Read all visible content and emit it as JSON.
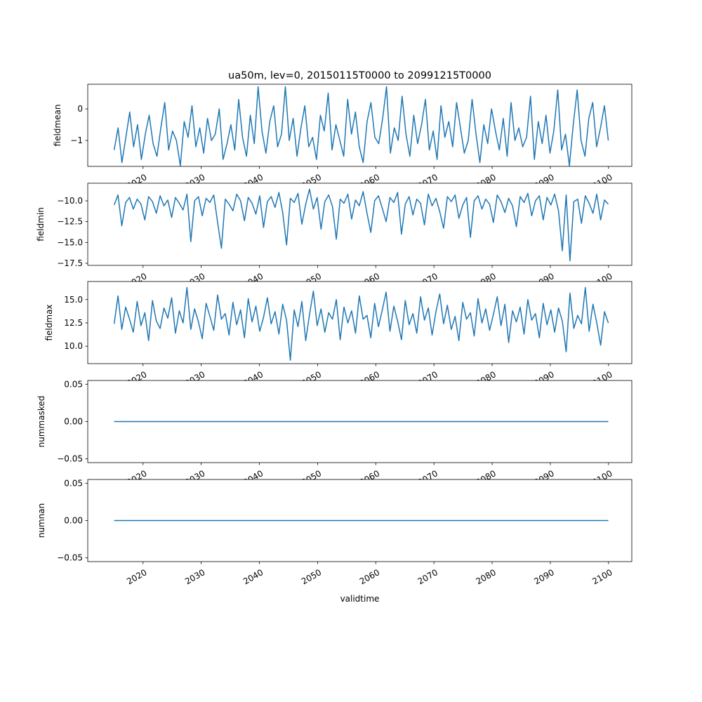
{
  "chart_data": [
    {
      "type": "line",
      "title": "ua50m, lev=0, 20150115T0000 to 20991215T0000",
      "ylabel": "fieldmean",
      "xlabel": "",
      "ylim": [
        -1.82,
        0.78
      ],
      "yticks": [
        0,
        -1
      ],
      "ytick_labels": [
        "0",
        "−1"
      ],
      "values": [
        -1.3,
        -0.6,
        -1.7,
        -0.9,
        -0.1,
        -1.2,
        -0.5,
        -1.6,
        -0.8,
        -0.2,
        -1.1,
        -1.5,
        -0.6,
        0.2,
        -1.3,
        -0.7,
        -1.0,
        -1.8,
        -0.4,
        -0.9,
        0.1,
        -1.2,
        -0.6,
        -1.4,
        -0.3,
        -1.0,
        -0.8,
        0.0,
        -1.6,
        -1.1,
        -0.5,
        -1.3,
        0.3,
        -0.9,
        -1.5,
        -0.2,
        -1.1,
        0.7,
        -0.7,
        -1.4,
        -0.4,
        0.1,
        -1.2,
        -0.8,
        0.7,
        -1.0,
        -0.3,
        -1.5,
        -0.6,
        0.1,
        -1.2,
        -0.9,
        -1.6,
        -0.2,
        -0.7,
        0.5,
        -1.3,
        -0.5,
        -1.0,
        -1.5,
        0.3,
        -0.8,
        -0.1,
        -1.2,
        -1.7,
        -0.4,
        0.2,
        -0.9,
        -1.1,
        -0.3,
        0.7,
        -1.4,
        -0.6,
        -1.0,
        0.4,
        -0.8,
        -1.5,
        -0.2,
        -1.1,
        -0.5,
        0.3,
        -1.3,
        -0.7,
        -1.6,
        0.1,
        -0.9,
        -0.4,
        -1.2,
        0.2,
        -0.6,
        -1.4,
        -1.0,
        0.3,
        -0.8,
        -1.7,
        -0.5,
        -1.1,
        0.0,
        -0.7,
        -1.3,
        -0.3,
        -1.5,
        0.2,
        -1.0,
        -0.6,
        -1.2,
        -0.9,
        0.4,
        -1.6,
        -0.4,
        -1.1,
        -0.2,
        -1.4,
        -0.7,
        0.6,
        -1.3,
        -0.8,
        -1.8,
        -0.5,
        0.6,
        -1.0,
        -1.5,
        -0.3,
        0.2,
        -1.2,
        -0.6,
        0.1,
        -1.0
      ],
      "xlim": [
        2010.5,
        2104.0
      ],
      "x_range": [
        2015.04,
        2099.96
      ],
      "xticks": [
        2020,
        2030,
        2040,
        2050,
        2060,
        2070,
        2080,
        2090,
        2100
      ]
    },
    {
      "type": "line",
      "ylabel": "fieldmin",
      "ylim": [
        -17.75,
        -7.89
      ],
      "yticks": [
        -10,
        -12.5,
        -15,
        -17.5
      ],
      "ytick_labels": [
        "−10.0",
        "−12.5",
        "−15.0",
        "−17.5"
      ],
      "values": [
        -10.5,
        -9.3,
        -13.0,
        -10.2,
        -9.6,
        -11.0,
        -9.8,
        -10.4,
        -12.3,
        -9.5,
        -10.1,
        -11.5,
        -9.4,
        -10.6,
        -9.9,
        -12.0,
        -9.6,
        -10.3,
        -11.1,
        -9.2,
        -14.9,
        -10.0,
        -9.5,
        -11.8,
        -9.7,
        -10.2,
        -9.3,
        -12.6,
        -15.7,
        -9.8,
        -10.4,
        -11.2,
        -9.2,
        -10.0,
        -12.4,
        -9.6,
        -10.3,
        -11.6,
        -9.4,
        -13.2,
        -10.1,
        -9.5,
        -10.8,
        -9.0,
        -11.4,
        -15.3,
        -9.7,
        -10.2,
        -9.1,
        -12.8,
        -10.4,
        -8.6,
        -11.0,
        -9.6,
        -13.4,
        -10.1,
        -9.3,
        -10.7,
        -14.6,
        -9.8,
        -10.3,
        -9.2,
        -12.2,
        -9.9,
        -10.6,
        -8.9,
        -11.5,
        -13.8,
        -10.0,
        -9.4,
        -10.9,
        -12.5,
        -9.6,
        -10.2,
        -9.0,
        -14.0,
        -10.4,
        -9.5,
        -11.7,
        -9.8,
        -10.3,
        -12.9,
        -9.2,
        -10.6,
        -9.7,
        -11.3,
        -13.3,
        -9.5,
        -10.1,
        -9.3,
        -12.1,
        -10.5,
        -9.6,
        -14.4,
        -10.0,
        -9.4,
        -11.0,
        -9.8,
        -10.4,
        -12.6,
        -9.3,
        -10.1,
        -11.4,
        -9.7,
        -10.6,
        -13.1,
        -9.5,
        -10.2,
        -9.1,
        -11.8,
        -10.0,
        -9.4,
        -12.3,
        -9.6,
        -10.5,
        -9.2,
        -11.2,
        -16.0,
        -9.3,
        -17.2,
        -10.1,
        -9.8,
        -12.7,
        -9.4,
        -10.3,
        -11.5,
        -9.2,
        -12.3,
        -9.9,
        -10.4
      ],
      "xlim": [
        2010.5,
        2104.0
      ],
      "x_range": [
        2015.04,
        2099.96
      ],
      "xticks": [
        2020,
        2030,
        2040,
        2050,
        2060,
        2070,
        2080,
        2090,
        2100
      ]
    },
    {
      "type": "line",
      "ylabel": "fieldmax",
      "ylim": [
        8.13,
        16.94
      ],
      "yticks": [
        15,
        12.5,
        10
      ],
      "ytick_labels": [
        "15.0",
        "12.5",
        "10.0"
      ],
      "values": [
        12.4,
        15.4,
        11.8,
        14.2,
        12.9,
        11.5,
        14.8,
        12.2,
        13.6,
        10.6,
        14.9,
        12.7,
        11.9,
        14.1,
        13.0,
        15.2,
        11.4,
        13.8,
        12.5,
        16.3,
        11.8,
        14.0,
        12.6,
        10.8,
        14.6,
        13.2,
        11.7,
        15.5,
        12.9,
        13.5,
        11.2,
        14.7,
        12.3,
        13.9,
        10.9,
        15.1,
        12.6,
        14.3,
        11.6,
        13.1,
        15.2,
        12.4,
        13.7,
        11.3,
        14.5,
        12.8,
        8.5,
        13.9,
        12.1,
        14.8,
        10.6,
        13.4,
        15.9,
        12.2,
        14.0,
        11.5,
        13.6,
        12.9,
        15.0,
        10.7,
        14.2,
        12.5,
        13.8,
        11.4,
        15.4,
        12.9,
        13.3,
        10.9,
        14.6,
        12.1,
        13.9,
        15.8,
        11.6,
        14.3,
        12.7,
        10.7,
        14.9,
        12.3,
        13.5,
        11.4,
        15.3,
        12.8,
        14.1,
        11.2,
        13.7,
        15.6,
        12.4,
        14.4,
        11.8,
        13.2,
        10.6,
        14.7,
        12.9,
        13.6,
        11.1,
        15.1,
        12.5,
        14.0,
        11.7,
        13.4,
        15.3,
        12.2,
        14.5,
        10.4,
        13.8,
        12.6,
        14.2,
        11.3,
        15.0,
        12.8,
        13.5,
        10.9,
        14.6,
        12.3,
        13.9,
        11.5,
        14.1,
        12.7,
        9.4,
        15.7,
        11.9,
        13.3,
        12.4,
        16.3,
        11.6,
        14.5,
        12.5,
        10.1,
        13.7,
        12.5
      ],
      "xlim": [
        2010.5,
        2104.0
      ],
      "x_range": [
        2015.04,
        2099.96
      ],
      "xticks": [
        2020,
        2030,
        2040,
        2050,
        2060,
        2070,
        2080,
        2090,
        2100
      ]
    },
    {
      "type": "line",
      "ylabel": "nummasked",
      "ylim": [
        -0.055,
        0.055
      ],
      "yticks": [
        0.05,
        0,
        -0.05
      ],
      "ytick_labels": [
        "0.05",
        "0.00",
        "−0.05"
      ],
      "values": [
        0,
        0
      ],
      "xlim": [
        2010.5,
        2104.0
      ],
      "x_range": [
        2015.04,
        2099.96
      ],
      "xticks": [
        2020,
        2030,
        2040,
        2050,
        2060,
        2070,
        2080,
        2090,
        2100
      ]
    },
    {
      "type": "line",
      "ylabel": "numnan",
      "xlabel": "validtime",
      "ylim": [
        -0.055,
        0.055
      ],
      "yticks": [
        0.05,
        0,
        -0.05
      ],
      "ytick_labels": [
        "0.05",
        "0.00",
        "−0.05"
      ],
      "values": [
        0,
        0
      ],
      "xlim": [
        2010.5,
        2104.0
      ],
      "x_range": [
        2015.04,
        2099.96
      ],
      "xticks": [
        2020,
        2030,
        2040,
        2050,
        2060,
        2070,
        2080,
        2090,
        2100
      ]
    }
  ],
  "colors": {
    "line": "#1f77b4",
    "axes": "#000000"
  }
}
